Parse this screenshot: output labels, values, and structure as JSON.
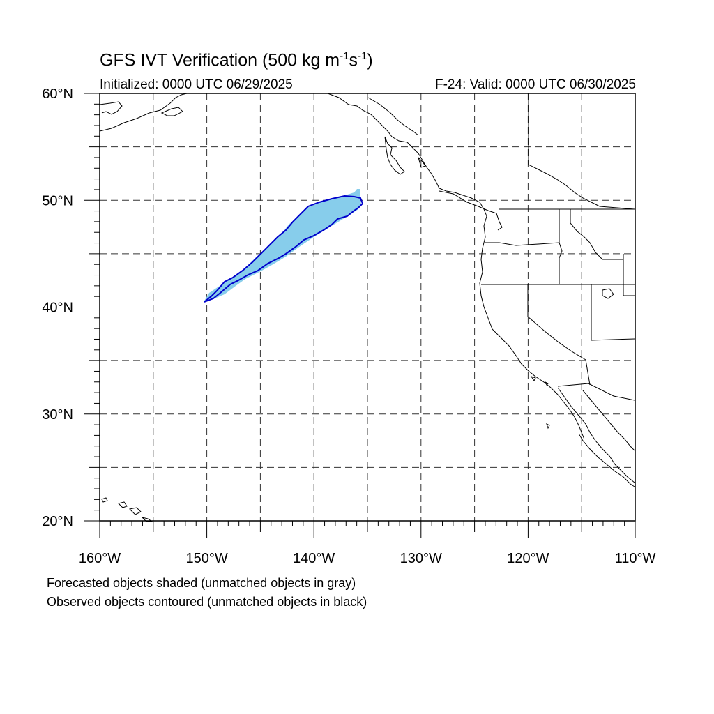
{
  "title": {
    "main": "GFS IVT Verification (500 kg m",
    "exp1": "-1",
    "mid": "s",
    "exp2": "-1",
    "end": ")"
  },
  "subtitle_left": "Initialized: 0000 UTC 06/29/2025",
  "subtitle_right": "F-24: Valid: 0000 UTC 06/30/2025",
  "notes": {
    "line1": "Forecasted objects shaded (unmatched objects in gray)",
    "line2": "Observed objects contoured (unmatched objects in black)"
  },
  "map": {
    "lon_range": [
      -160,
      -110
    ],
    "lat_range": [
      20,
      60
    ],
    "lon_ticks": [
      {
        "lon": -160,
        "label": "160°W"
      },
      {
        "lon": -150,
        "label": "150°W"
      },
      {
        "lon": -140,
        "label": "140°W"
      },
      {
        "lon": -130,
        "label": "130°W"
      },
      {
        "lon": -120,
        "label": "120°W"
      },
      {
        "lon": -110,
        "label": "110°W"
      }
    ],
    "lat_ticks": [
      {
        "lat": 60,
        "label": "60°N"
      },
      {
        "lat": 50,
        "label": "50°N"
      },
      {
        "lat": 40,
        "label": "40°N"
      },
      {
        "lat": 30,
        "label": "30°N"
      },
      {
        "lat": 20,
        "label": "20°N"
      }
    ],
    "gridline_step": 5,
    "colors": {
      "forecast_fill": "#87cdeb",
      "observed_contour": "#0000cc",
      "coastline": "#000000",
      "grid": "#333333"
    }
  }
}
